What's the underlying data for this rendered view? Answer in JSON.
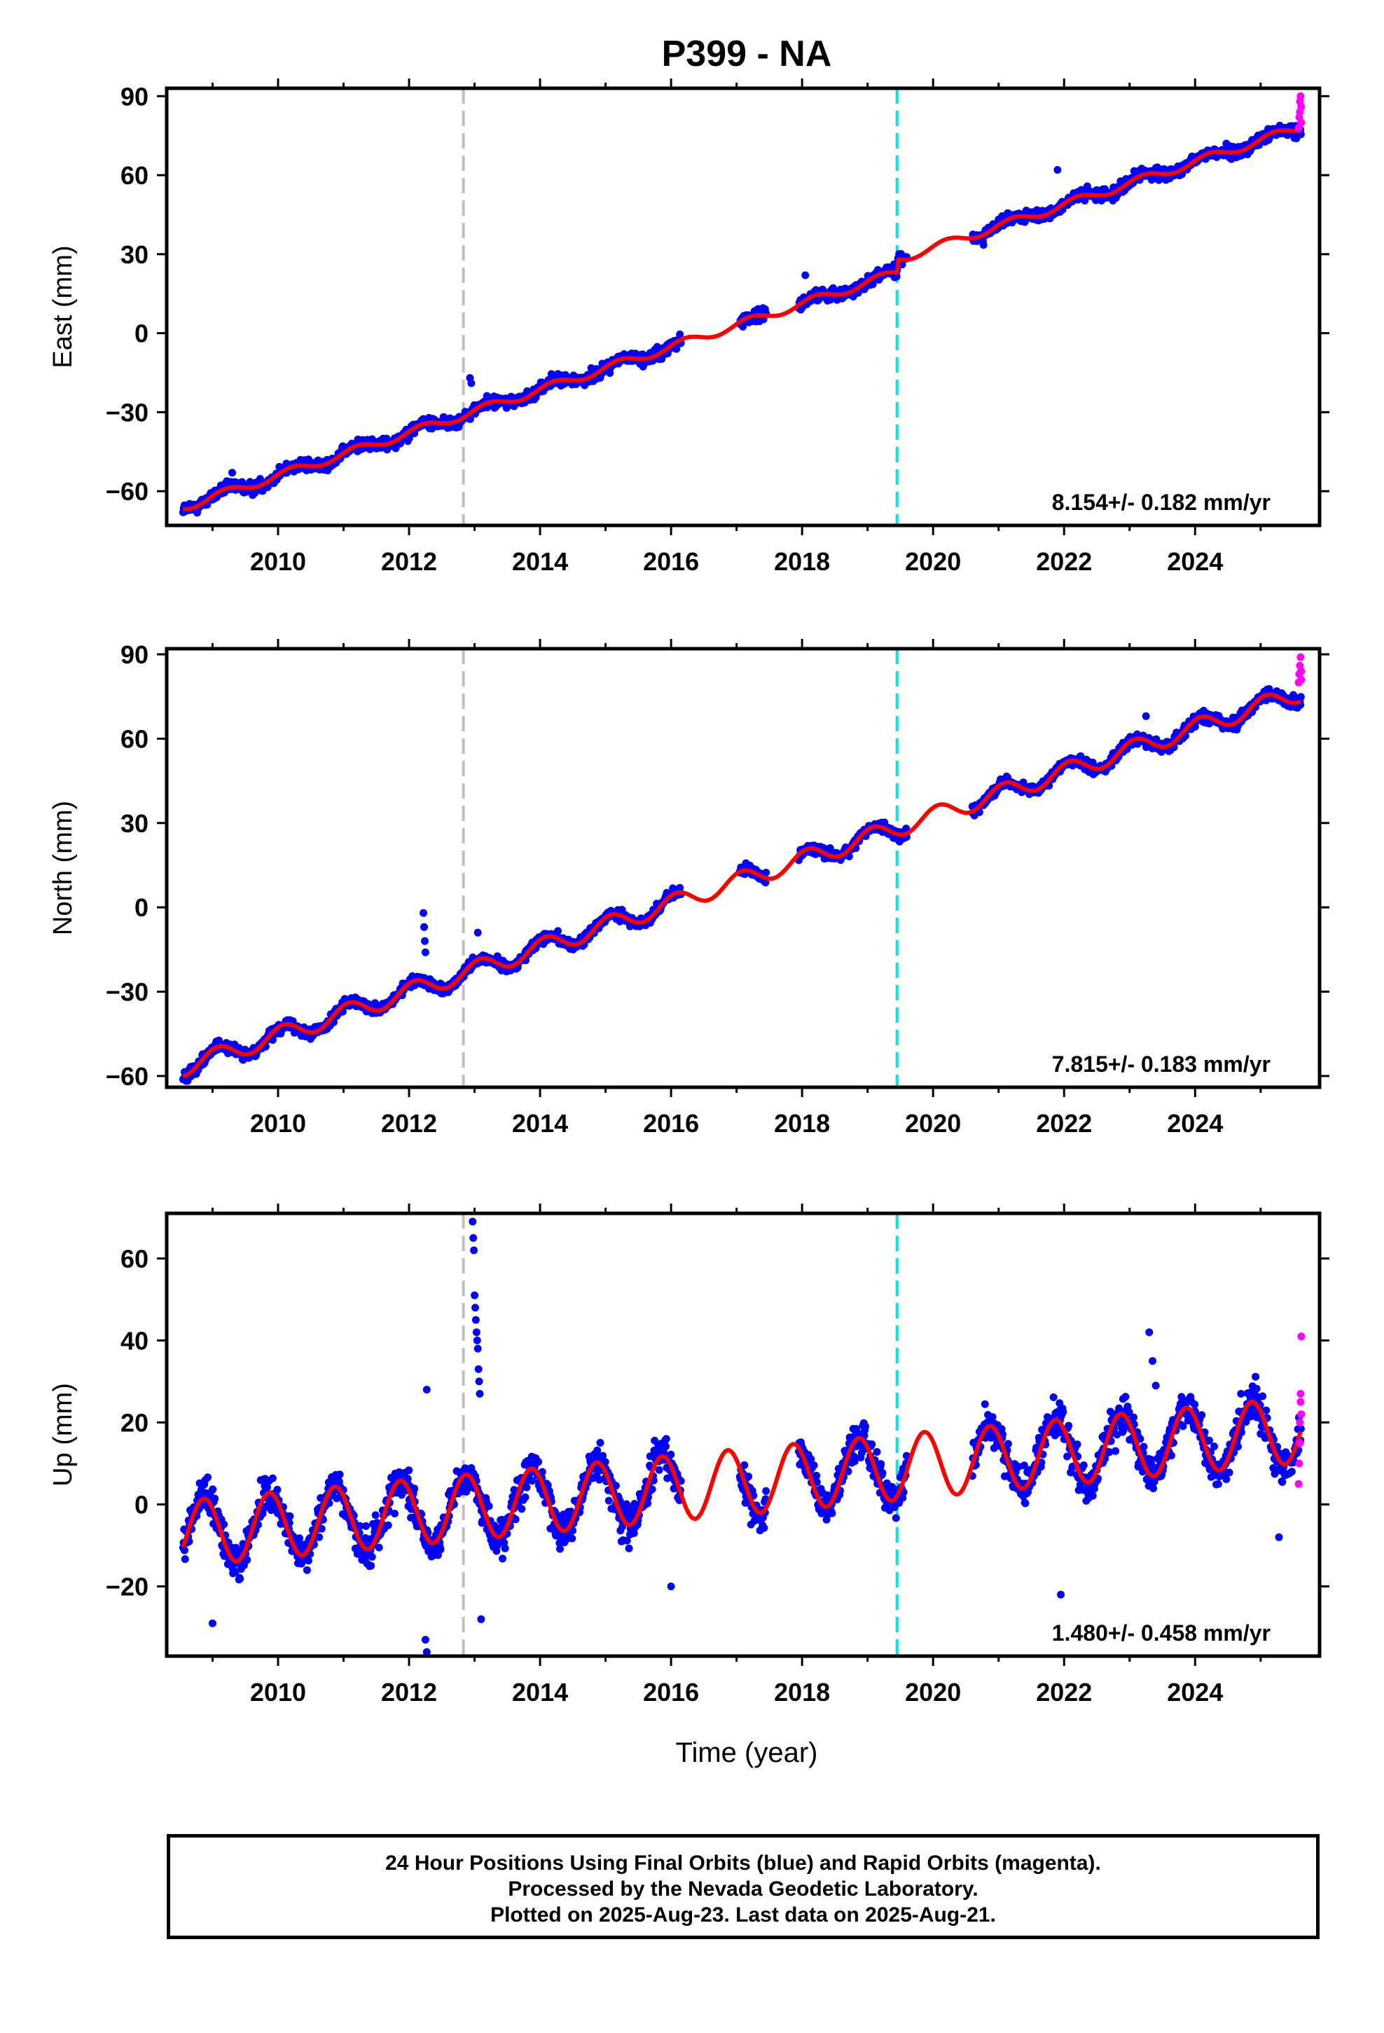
{
  "title": "P399 - NA",
  "colors": {
    "final_orbits": "#0000ff",
    "rapid_orbits": "#ff00ff",
    "model_fit": "#ff0000",
    "event_gray": "#c0c0c0",
    "event_cyan": "#00e5e5"
  },
  "xlabel": "Time (year)",
  "footer": {
    "line1": "24 Hour Positions Using Final Orbits (blue) and Rapid Orbits (magenta).",
    "line2": "Processed by the Nevada Geodetic Laboratory.",
    "line3": "Plotted on 2025-Aug-23. Last data on 2025-Aug-21."
  },
  "chart_data": [
    {
      "type": "scatter",
      "component": "east",
      "ylabel": "East (mm)",
      "xlim": [
        2008.3,
        2025.9
      ],
      "ylim": [
        -73,
        93
      ],
      "yticks": [
        -60,
        -30,
        0,
        30,
        60,
        90
      ],
      "xticks": [
        2010,
        2012,
        2014,
        2016,
        2018,
        2020,
        2022,
        2024
      ],
      "vertical_lines": [
        2012.83,
        2019.45
      ],
      "rate_text": "8.154+/- 0.182 mm/yr",
      "trend": {
        "t0": 2008.6,
        "y0": -65.5,
        "rate": 8.154
      },
      "steps": [
        {
          "t": 2019.45,
          "dy": 5
        }
      ],
      "annual": {
        "amp": 1.6,
        "phase": 0.3
      },
      "data_spans": [
        [
          2008.55,
          2016.15
        ],
        [
          2017.05,
          2017.45
        ],
        [
          2017.95,
          2019.6
        ],
        [
          2020.6,
          2025.62
        ]
      ],
      "scatter_noise": 2.2,
      "outliers": [
        [
          2012.93,
          -17
        ],
        [
          2012.95,
          -19
        ],
        [
          2011.95,
          -37
        ],
        [
          2018.05,
          22
        ],
        [
          2021.9,
          62
        ],
        [
          2009.3,
          -53
        ]
      ],
      "rapid_points": [
        [
          2025.58,
          78
        ],
        [
          2025.59,
          82
        ],
        [
          2025.6,
          84
        ],
        [
          2025.6,
          88
        ],
        [
          2025.61,
          90
        ],
        [
          2025.62,
          86
        ],
        [
          2025.62,
          80
        ]
      ]
    },
    {
      "type": "scatter",
      "component": "north",
      "ylabel": "North (mm)",
      "xlim": [
        2008.3,
        2025.9
      ],
      "ylim": [
        -64,
        92
      ],
      "yticks": [
        -60,
        -30,
        0,
        30,
        60,
        90
      ],
      "xticks": [
        2010,
        2012,
        2014,
        2016,
        2018,
        2020,
        2022,
        2024
      ],
      "vertical_lines": [
        2012.83,
        2019.45
      ],
      "rate_text": "7.815+/- 0.183 mm/yr",
      "trend": {
        "t0": 2008.6,
        "y0": -56.5,
        "rate": 7.815
      },
      "steps": [],
      "annual": {
        "amp": 3.2,
        "phase": 1.1
      },
      "data_spans": [
        [
          2008.55,
          2016.15
        ],
        [
          2017.05,
          2017.45
        ],
        [
          2017.95,
          2019.6
        ],
        [
          2020.6,
          2025.62
        ]
      ],
      "scatter_noise": 1.9,
      "outliers": [
        [
          2012.22,
          -2
        ],
        [
          2012.23,
          -7
        ],
        [
          2012.24,
          -12
        ],
        [
          2012.25,
          -16
        ],
        [
          2013.05,
          -9
        ],
        [
          2013.0,
          -20
        ],
        [
          2023.25,
          68
        ]
      ],
      "rapid_points": [
        [
          2025.58,
          80
        ],
        [
          2025.59,
          83
        ],
        [
          2025.6,
          86
        ],
        [
          2025.61,
          89
        ],
        [
          2025.62,
          84
        ],
        [
          2025.62,
          81
        ]
      ]
    },
    {
      "type": "scatter",
      "component": "up",
      "ylabel": "Up (mm)",
      "xlim": [
        2008.3,
        2025.9
      ],
      "ylim": [
        -37,
        71
      ],
      "yticks": [
        -20,
        0,
        20,
        40,
        60
      ],
      "xticks": [
        2010,
        2012,
        2014,
        2016,
        2018,
        2020,
        2022,
        2024
      ],
      "vertical_lines": [
        2012.83,
        2019.45
      ],
      "rate_text": "1.480+/- 0.458 mm/yr",
      "trend": {
        "t0": 2008.6,
        "y0": -7,
        "rate": 1.48
      },
      "steps": [],
      "annual": {
        "amp": 8.0,
        "phase": 2.4
      },
      "data_spans": [
        [
          2008.55,
          2016.15
        ],
        [
          2017.05,
          2017.45
        ],
        [
          2017.95,
          2019.6
        ],
        [
          2020.6,
          2025.62
        ]
      ],
      "scatter_noise": 4.5,
      "outliers": [
        [
          2012.97,
          69
        ],
        [
          2012.98,
          65
        ],
        [
          2012.99,
          62
        ],
        [
          2013.0,
          51
        ],
        [
          2013.01,
          48
        ],
        [
          2013.02,
          45
        ],
        [
          2013.03,
          42
        ],
        [
          2013.04,
          40
        ],
        [
          2013.05,
          38
        ],
        [
          2013.06,
          33
        ],
        [
          2013.07,
          30
        ],
        [
          2013.08,
          27
        ],
        [
          2012.27,
          28
        ],
        [
          2012.25,
          -33
        ],
        [
          2012.27,
          -36
        ],
        [
          2013.1,
          -28
        ],
        [
          2023.3,
          42
        ],
        [
          2023.35,
          35
        ],
        [
          2023.4,
          29
        ],
        [
          2021.95,
          -22
        ],
        [
          2016.0,
          -20
        ],
        [
          2009.0,
          -29
        ],
        [
          2024.7,
          27
        ],
        [
          2025.28,
          -8
        ]
      ],
      "rapid_points": [
        [
          2025.58,
          5
        ],
        [
          2025.59,
          10
        ],
        [
          2025.6,
          15
        ],
        [
          2025.6,
          20
        ],
        [
          2025.61,
          25
        ],
        [
          2025.61,
          27
        ],
        [
          2025.62,
          22
        ],
        [
          2025.62,
          41
        ]
      ]
    }
  ]
}
